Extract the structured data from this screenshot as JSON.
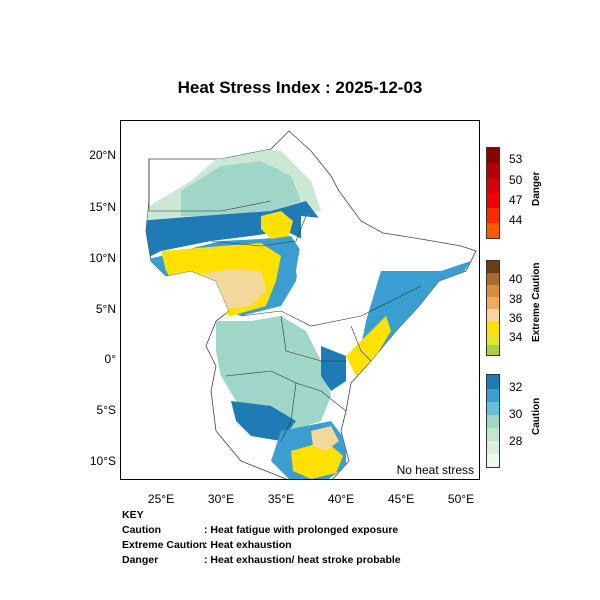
{
  "title": "Heat Stress Index : 2025-12-03",
  "map": {
    "lat_labels": [
      "20°N",
      "15°N",
      "10°N",
      "5°N",
      "0°",
      "5°S",
      "10°S"
    ],
    "lon_labels": [
      "25°E",
      "30°E",
      "35°E",
      "40°E",
      "45°E",
      "50°E"
    ],
    "note": "No heat stress"
  },
  "legend": {
    "danger": {
      "title": "Danger",
      "labels": [
        "53",
        "50",
        "47",
        "44"
      ],
      "colors": [
        "#8b0000",
        "#b50000",
        "#d60000",
        "#f00000",
        "#ff2a00",
        "#ff5a00"
      ]
    },
    "extreme": {
      "title": "Extreme Caution",
      "labels": [
        "40",
        "38",
        "36",
        "34"
      ],
      "colors": [
        "#6b3d12",
        "#a86b2c",
        "#d98a3a",
        "#f0a860",
        "#f3d89b",
        "#ffe100",
        "#e8e628",
        "#a9cf4f"
      ]
    },
    "caution": {
      "title": "Caution",
      "labels": [
        "32",
        "30",
        "28"
      ],
      "colors": [
        "#1f7bb5",
        "#3b9ed0",
        "#69bfd6",
        "#9fd6c7",
        "#c4e6cf",
        "#def0dd",
        "#f2f8ef"
      ]
    }
  },
  "key": {
    "heading": "KEY",
    "rows": [
      {
        "term": "Caution",
        "def": ": Heat fatigue with prolonged exposure"
      },
      {
        "term": "Extreme Caution",
        "def": ": Heat exhaustion"
      },
      {
        "term": "Danger",
        "def": ": Heat exhaustion/ heat stroke probable"
      }
    ]
  }
}
